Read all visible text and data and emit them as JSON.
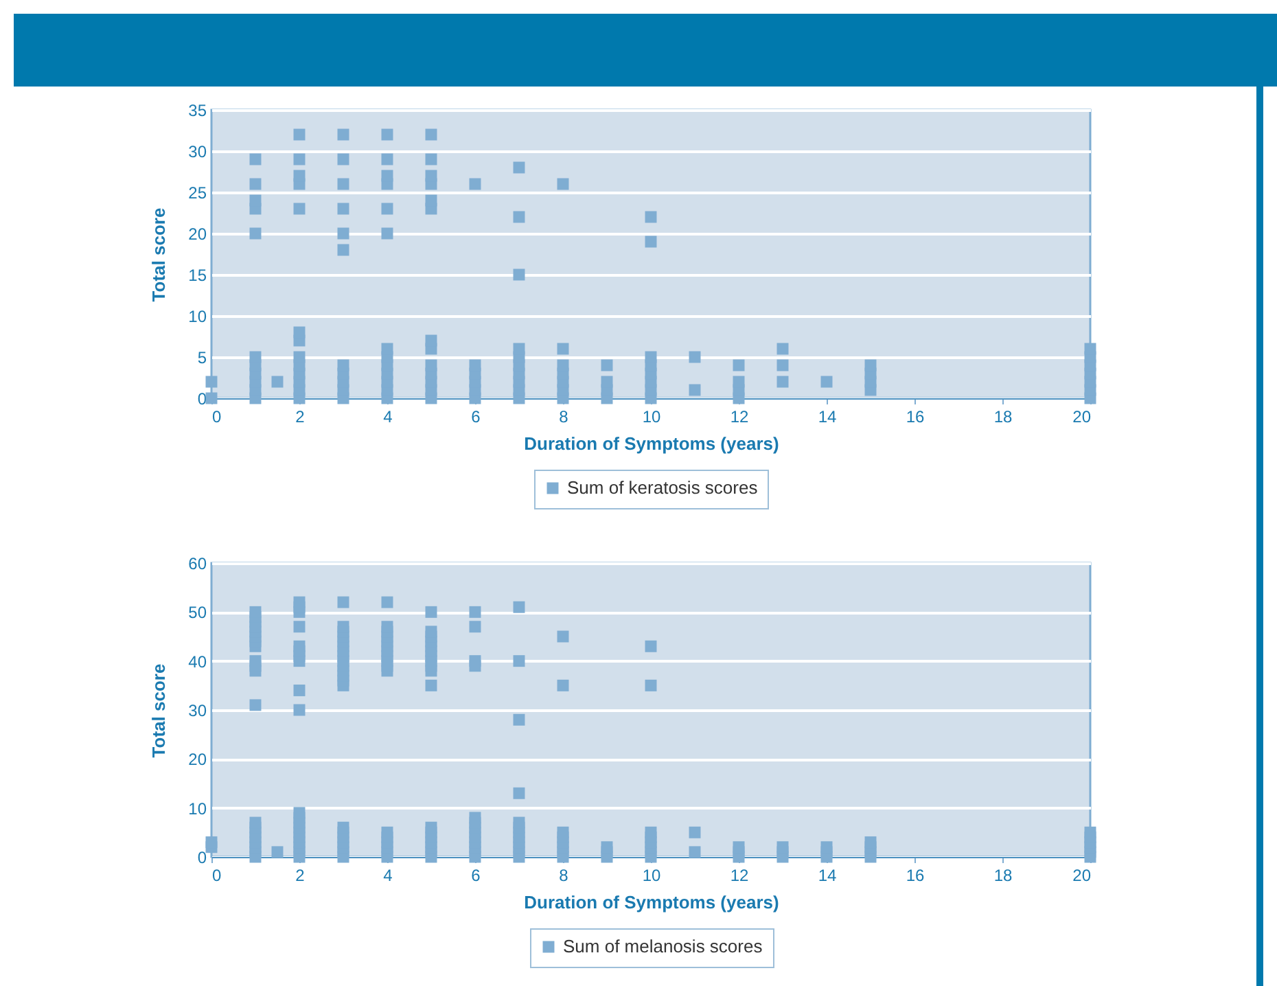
{
  "chart_data": [
    {
      "type": "scatter",
      "xlabel": "Duration of Symptoms (years)",
      "ylabel": "Total score",
      "xlim": [
        0,
        20
      ],
      "xticks": [
        0,
        2,
        4,
        6,
        8,
        10,
        12,
        14,
        16,
        18,
        20
      ],
      "ylim": [
        0,
        35
      ],
      "yticks": [
        0,
        5,
        10,
        15,
        20,
        25,
        30,
        35
      ],
      "grid": "y",
      "legend": "bottom",
      "marker": "square",
      "series": [
        {
          "name": "Sum of keratosis scores",
          "color": "#7fadd2",
          "x": [
            0,
            0,
            1,
            1,
            1,
            1,
            1,
            1,
            1,
            1,
            1,
            1,
            1,
            1.5,
            2,
            2,
            2,
            2,
            2,
            2,
            2,
            2,
            2,
            2,
            2,
            2,
            2,
            3,
            3,
            3,
            3,
            3,
            3,
            3,
            3,
            3,
            3,
            3,
            4,
            4,
            4,
            4,
            4,
            4,
            4,
            4,
            4,
            4,
            4,
            4,
            4,
            5,
            5,
            5,
            5,
            5,
            5,
            5,
            5,
            5,
            5,
            5,
            5,
            5,
            6,
            6,
            6,
            6,
            6,
            6,
            7,
            7,
            7,
            7,
            7,
            7,
            7,
            7,
            7,
            7,
            8,
            8,
            8,
            8,
            8,
            8,
            8,
            9,
            9,
            9,
            9,
            10,
            10,
            10,
            10,
            10,
            10,
            10,
            10,
            11,
            11,
            12,
            12,
            12,
            12,
            13,
            13,
            13,
            14,
            15,
            15,
            15,
            15,
            20,
            20,
            20,
            20,
            20,
            20,
            20
          ],
          "values": [
            0,
            2,
            0,
            1,
            2,
            3,
            4,
            5,
            20,
            23,
            24,
            26,
            29,
            2,
            0,
            1,
            2,
            3,
            4,
            5,
            7,
            8,
            23,
            26,
            27,
            29,
            32,
            0,
            1,
            2,
            3,
            4,
            18,
            20,
            23,
            26,
            29,
            32,
            0,
            1,
            2,
            3,
            4,
            5,
            6,
            20,
            23,
            26,
            27,
            29,
            32,
            0,
            1,
            2,
            3,
            4,
            6,
            7,
            23,
            24,
            26,
            27,
            29,
            32,
            0,
            1,
            2,
            3,
            4,
            26,
            0,
            1,
            2,
            3,
            4,
            5,
            6,
            15,
            22,
            28,
            0,
            1,
            2,
            3,
            4,
            6,
            26,
            0,
            1,
            2,
            4,
            0,
            1,
            2,
            3,
            4,
            5,
            19,
            22,
            1,
            5,
            0,
            1,
            2,
            4,
            2,
            4,
            6,
            2,
            1,
            2,
            3,
            4,
            0,
            1,
            2,
            3,
            4,
            5,
            6
          ]
        }
      ]
    },
    {
      "type": "scatter",
      "xlabel": "Duration of Symptoms (years)",
      "ylabel": "Total score",
      "xlim": [
        0,
        20
      ],
      "xticks": [
        0,
        2,
        4,
        6,
        8,
        10,
        12,
        14,
        16,
        18,
        20
      ],
      "ylim": [
        0,
        60
      ],
      "yticks": [
        0,
        10,
        20,
        30,
        40,
        50,
        60
      ],
      "grid": "y",
      "legend": "bottom",
      "marker": "square",
      "series": [
        {
          "name": "Sum of melanosis scores",
          "color": "#7fadd2",
          "x": [
            0,
            0,
            1,
            1,
            1,
            1,
            1,
            1,
            1,
            1,
            1,
            1,
            1,
            1,
            1,
            1,
            1,
            1,
            1,
            1,
            1,
            1,
            1.5,
            2,
            2,
            2,
            2,
            2,
            2,
            2,
            2,
            2,
            2,
            2,
            2,
            2,
            2,
            2,
            2,
            2,
            2,
            2,
            2,
            3,
            3,
            3,
            3,
            3,
            3,
            3,
            3,
            3,
            3,
            3,
            3,
            3,
            3,
            3,
            3,
            3,
            3,
            3,
            3,
            3,
            4,
            4,
            4,
            4,
            4,
            4,
            4,
            4,
            4,
            4,
            4,
            4,
            4,
            4,
            4,
            4,
            4,
            5,
            5,
            5,
            5,
            5,
            5,
            5,
            5,
            5,
            5,
            5,
            5,
            5,
            5,
            5,
            5,
            5,
            5,
            6,
            6,
            6,
            6,
            6,
            6,
            6,
            6,
            6,
            6,
            6,
            6,
            6,
            7,
            7,
            7,
            7,
            7,
            7,
            7,
            7,
            7,
            7,
            7,
            7,
            8,
            8,
            8,
            8,
            8,
            8,
            8,
            8,
            9,
            9,
            9,
            10,
            10,
            10,
            10,
            10,
            10,
            10,
            10,
            11,
            11,
            12,
            12,
            12,
            13,
            13,
            13,
            14,
            14,
            14,
            15,
            15,
            15,
            15,
            20,
            20,
            20,
            20,
            20,
            20
          ],
          "values": [
            2,
            3,
            0,
            1,
            2,
            3,
            4,
            5,
            6,
            7,
            31,
            38,
            39,
            40,
            43,
            44,
            45,
            46,
            47,
            48,
            49,
            50,
            1,
            0,
            1,
            2,
            3,
            4,
            5,
            6,
            7,
            8,
            9,
            30,
            34,
            40,
            41,
            42,
            43,
            47,
            50,
            51,
            52,
            0,
            1,
            2,
            3,
            4,
            5,
            6,
            35,
            36,
            37,
            38,
            39,
            40,
            41,
            42,
            43,
            44,
            45,
            46,
            47,
            52,
            0,
            1,
            2,
            3,
            4,
            5,
            38,
            39,
            40,
            41,
            42,
            43,
            44,
            45,
            46,
            47,
            52,
            0,
            1,
            2,
            3,
            4,
            5,
            6,
            35,
            38,
            39,
            40,
            41,
            42,
            43,
            44,
            45,
            46,
            50,
            0,
            1,
            2,
            3,
            4,
            5,
            6,
            7,
            8,
            39,
            40,
            47,
            50,
            0,
            1,
            2,
            3,
            4,
            5,
            6,
            7,
            13,
            28,
            40,
            51,
            0,
            1,
            2,
            3,
            4,
            5,
            35,
            45,
            0,
            1,
            2,
            0,
            1,
            2,
            3,
            4,
            5,
            35,
            43,
            1,
            5,
            0,
            1,
            2,
            0,
            1,
            2,
            0,
            1,
            2,
            0,
            1,
            2,
            3,
            0,
            1,
            2,
            3,
            4,
            5
          ]
        }
      ]
    }
  ]
}
